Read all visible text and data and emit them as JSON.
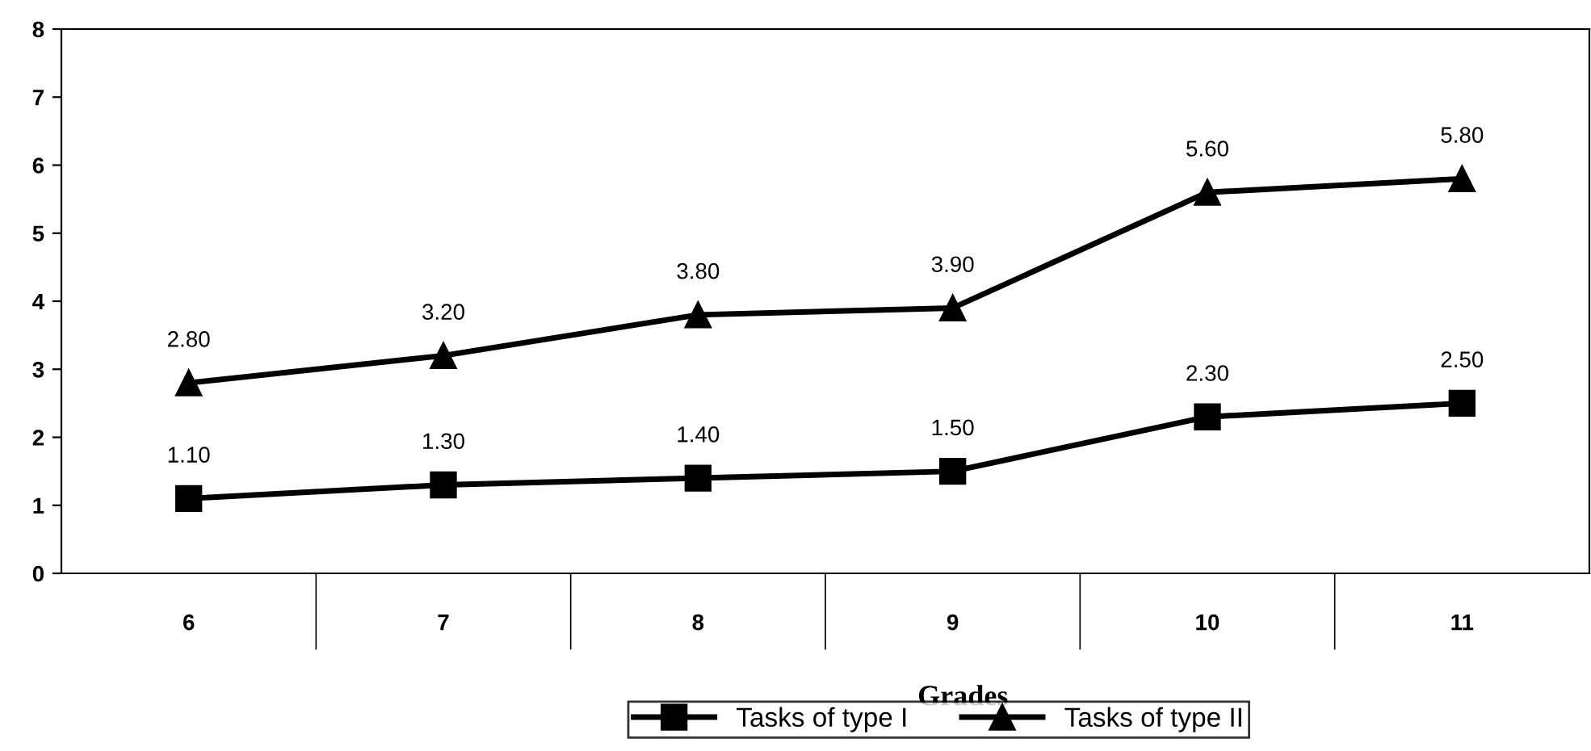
{
  "chart_data": {
    "type": "line",
    "xlabel": "Grades",
    "categories": [
      "6",
      "7",
      "8",
      "9",
      "10",
      "11"
    ],
    "series": [
      {
        "name": "Tasks of type I",
        "color": "#000000",
        "marker": "square",
        "values": [
          1.1,
          1.3,
          1.4,
          1.5,
          2.3,
          2.5
        ],
        "value_labels": [
          "1.10",
          "1.30",
          "1.40",
          "1.50",
          "2.30",
          "2.50"
        ]
      },
      {
        "name": "Tasks of type II",
        "color": "#000000",
        "marker": "triangle",
        "values": [
          2.8,
          3.2,
          3.8,
          3.9,
          5.6,
          5.8
        ],
        "value_labels": [
          "2.80",
          "3.20",
          "3.80",
          "3.90",
          "5.60",
          "5.80"
        ]
      }
    ],
    "ylim": [
      0,
      8
    ],
    "yticks": [
      0,
      1,
      2,
      3,
      4,
      5,
      6,
      7,
      8
    ],
    "grid": false,
    "legend": "bottom",
    "line_style": "solid"
  }
}
